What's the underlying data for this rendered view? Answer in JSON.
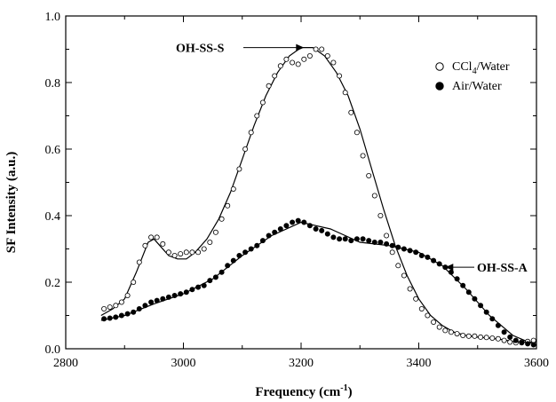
{
  "chart_data": {
    "type": "scatter",
    "xlabel": "Frequency (cm",
    "xlabel_sup": "-1",
    "xlabel_end": ")",
    "ylabel": "SF Intensity (a.u.)",
    "xlim": [
      2800,
      3600
    ],
    "ylim": [
      0.0,
      1.0
    ],
    "xticks": [
      2800,
      3000,
      3200,
      3400,
      3600
    ],
    "yticks": [
      0.0,
      0.2,
      0.4,
      0.6,
      0.8,
      1.0
    ],
    "ytick_labels": [
      "0.0",
      "0.2",
      "0.4",
      "0.6",
      "0.8",
      "1.0"
    ],
    "legend_position": "top-right",
    "series": [
      {
        "name": "CCl4/Water",
        "label_main": "CCl",
        "label_sub": "4",
        "label_tail": "/Water",
        "marker": "open-circle",
        "points": [
          [
            2865,
            0.12
          ],
          [
            2875,
            0.125
          ],
          [
            2885,
            0.13
          ],
          [
            2895,
            0.14
          ],
          [
            2905,
            0.16
          ],
          [
            2915,
            0.2
          ],
          [
            2925,
            0.26
          ],
          [
            2935,
            0.31
          ],
          [
            2945,
            0.335
          ],
          [
            2955,
            0.335
          ],
          [
            2965,
            0.315
          ],
          [
            2975,
            0.29
          ],
          [
            2985,
            0.28
          ],
          [
            2995,
            0.285
          ],
          [
            3005,
            0.29
          ],
          [
            3015,
            0.29
          ],
          [
            3025,
            0.29
          ],
          [
            3035,
            0.3
          ],
          [
            3045,
            0.32
          ],
          [
            3055,
            0.35
          ],
          [
            3065,
            0.39
          ],
          [
            3075,
            0.43
          ],
          [
            3085,
            0.48
          ],
          [
            3095,
            0.54
          ],
          [
            3105,
            0.6
          ],
          [
            3115,
            0.65
          ],
          [
            3125,
            0.7
          ],
          [
            3135,
            0.74
          ],
          [
            3145,
            0.79
          ],
          [
            3155,
            0.82
          ],
          [
            3165,
            0.85
          ],
          [
            3175,
            0.87
          ],
          [
            3185,
            0.86
          ],
          [
            3195,
            0.855
          ],
          [
            3205,
            0.87
          ],
          [
            3215,
            0.88
          ],
          [
            3225,
            0.9
          ],
          [
            3235,
            0.9
          ],
          [
            3245,
            0.88
          ],
          [
            3255,
            0.86
          ],
          [
            3265,
            0.82
          ],
          [
            3275,
            0.77
          ],
          [
            3285,
            0.71
          ],
          [
            3295,
            0.65
          ],
          [
            3305,
            0.58
          ],
          [
            3315,
            0.52
          ],
          [
            3325,
            0.46
          ],
          [
            3335,
            0.4
          ],
          [
            3345,
            0.34
          ],
          [
            3355,
            0.29
          ],
          [
            3365,
            0.25
          ],
          [
            3375,
            0.22
          ],
          [
            3385,
            0.18
          ],
          [
            3395,
            0.15
          ],
          [
            3405,
            0.12
          ],
          [
            3415,
            0.1
          ],
          [
            3425,
            0.08
          ],
          [
            3435,
            0.065
          ],
          [
            3445,
            0.055
          ],
          [
            3455,
            0.05
          ],
          [
            3465,
            0.045
          ],
          [
            3475,
            0.04
          ],
          [
            3485,
            0.038
          ],
          [
            3495,
            0.038
          ],
          [
            3505,
            0.035
          ],
          [
            3515,
            0.034
          ],
          [
            3525,
            0.032
          ],
          [
            3535,
            0.03
          ],
          [
            3545,
            0.025
          ],
          [
            3555,
            0.02
          ],
          [
            3565,
            0.018
          ],
          [
            3575,
            0.02
          ],
          [
            3585,
            0.022
          ],
          [
            3595,
            0.025
          ]
        ],
        "fit": [
          [
            2860,
            0.1
          ],
          [
            2880,
            0.12
          ],
          [
            2900,
            0.15
          ],
          [
            2920,
            0.23
          ],
          [
            2940,
            0.32
          ],
          [
            2950,
            0.33
          ],
          [
            2960,
            0.31
          ],
          [
            2975,
            0.28
          ],
          [
            2990,
            0.27
          ],
          [
            3005,
            0.27
          ],
          [
            3020,
            0.29
          ],
          [
            3040,
            0.33
          ],
          [
            3060,
            0.39
          ],
          [
            3080,
            0.47
          ],
          [
            3100,
            0.57
          ],
          [
            3120,
            0.67
          ],
          [
            3140,
            0.76
          ],
          [
            3160,
            0.83
          ],
          [
            3180,
            0.88
          ],
          [
            3200,
            0.905
          ],
          [
            3220,
            0.905
          ],
          [
            3240,
            0.88
          ],
          [
            3260,
            0.83
          ],
          [
            3280,
            0.76
          ],
          [
            3300,
            0.66
          ],
          [
            3320,
            0.54
          ],
          [
            3340,
            0.42
          ],
          [
            3360,
            0.31
          ],
          [
            3380,
            0.22
          ],
          [
            3400,
            0.15
          ],
          [
            3420,
            0.1
          ],
          [
            3440,
            0.07
          ],
          [
            3460,
            0.05
          ],
          [
            3480,
            0.04
          ],
          [
            3500,
            0.035
          ],
          [
            3520,
            0.032
          ],
          [
            3540,
            0.028
          ],
          [
            3560,
            0.022
          ],
          [
            3580,
            0.02
          ],
          [
            3600,
            0.02
          ]
        ]
      },
      {
        "name": "Air/Water",
        "label_main": "Air/Water",
        "label_sub": "",
        "label_tail": "",
        "marker": "filled-circle",
        "points": [
          [
            2865,
            0.09
          ],
          [
            2875,
            0.092
          ],
          [
            2885,
            0.095
          ],
          [
            2895,
            0.1
          ],
          [
            2905,
            0.105
          ],
          [
            2915,
            0.11
          ],
          [
            2925,
            0.12
          ],
          [
            2935,
            0.13
          ],
          [
            2945,
            0.14
          ],
          [
            2955,
            0.145
          ],
          [
            2965,
            0.15
          ],
          [
            2975,
            0.155
          ],
          [
            2985,
            0.16
          ],
          [
            2995,
            0.165
          ],
          [
            3005,
            0.17
          ],
          [
            3015,
            0.178
          ],
          [
            3025,
            0.185
          ],
          [
            3035,
            0.19
          ],
          [
            3045,
            0.205
          ],
          [
            3055,
            0.215
          ],
          [
            3065,
            0.23
          ],
          [
            3075,
            0.25
          ],
          [
            3085,
            0.265
          ],
          [
            3095,
            0.28
          ],
          [
            3105,
            0.29
          ],
          [
            3115,
            0.3
          ],
          [
            3125,
            0.31
          ],
          [
            3135,
            0.325
          ],
          [
            3145,
            0.34
          ],
          [
            3155,
            0.35
          ],
          [
            3165,
            0.36
          ],
          [
            3175,
            0.37
          ],
          [
            3185,
            0.38
          ],
          [
            3195,
            0.385
          ],
          [
            3205,
            0.38
          ],
          [
            3215,
            0.37
          ],
          [
            3225,
            0.36
          ],
          [
            3235,
            0.355
          ],
          [
            3245,
            0.345
          ],
          [
            3255,
            0.335
          ],
          [
            3265,
            0.33
          ],
          [
            3275,
            0.33
          ],
          [
            3285,
            0.325
          ],
          [
            3295,
            0.33
          ],
          [
            3305,
            0.33
          ],
          [
            3315,
            0.325
          ],
          [
            3325,
            0.32
          ],
          [
            3335,
            0.32
          ],
          [
            3345,
            0.315
          ],
          [
            3355,
            0.31
          ],
          [
            3365,
            0.305
          ],
          [
            3375,
            0.3
          ],
          [
            3385,
            0.295
          ],
          [
            3395,
            0.29
          ],
          [
            3405,
            0.28
          ],
          [
            3415,
            0.275
          ],
          [
            3425,
            0.265
          ],
          [
            3435,
            0.255
          ],
          [
            3445,
            0.245
          ],
          [
            3455,
            0.23
          ],
          [
            3465,
            0.21
          ],
          [
            3475,
            0.19
          ],
          [
            3485,
            0.17
          ],
          [
            3495,
            0.15
          ],
          [
            3505,
            0.13
          ],
          [
            3515,
            0.11
          ],
          [
            3525,
            0.09
          ],
          [
            3535,
            0.07
          ],
          [
            3545,
            0.05
          ],
          [
            3555,
            0.035
          ],
          [
            3565,
            0.025
          ],
          [
            3575,
            0.018
          ],
          [
            3585,
            0.015
          ],
          [
            3595,
            0.012
          ]
        ],
        "fit": [
          [
            2860,
            0.085
          ],
          [
            2900,
            0.1
          ],
          [
            2950,
            0.135
          ],
          [
            3000,
            0.165
          ],
          [
            3050,
            0.21
          ],
          [
            3100,
            0.28
          ],
          [
            3150,
            0.34
          ],
          [
            3200,
            0.38
          ],
          [
            3250,
            0.36
          ],
          [
            3300,
            0.32
          ],
          [
            3350,
            0.31
          ],
          [
            3400,
            0.29
          ],
          [
            3440,
            0.25
          ],
          [
            3480,
            0.18
          ],
          [
            3520,
            0.1
          ],
          [
            3560,
            0.04
          ],
          [
            3600,
            0.01
          ]
        ]
      }
    ],
    "annotations": [
      {
        "text": "OH-SS-S",
        "x": 3205,
        "y": 0.905,
        "side": "left"
      },
      {
        "text": "OH-SS-A",
        "x": 3445,
        "y": 0.245,
        "side": "right"
      }
    ]
  }
}
